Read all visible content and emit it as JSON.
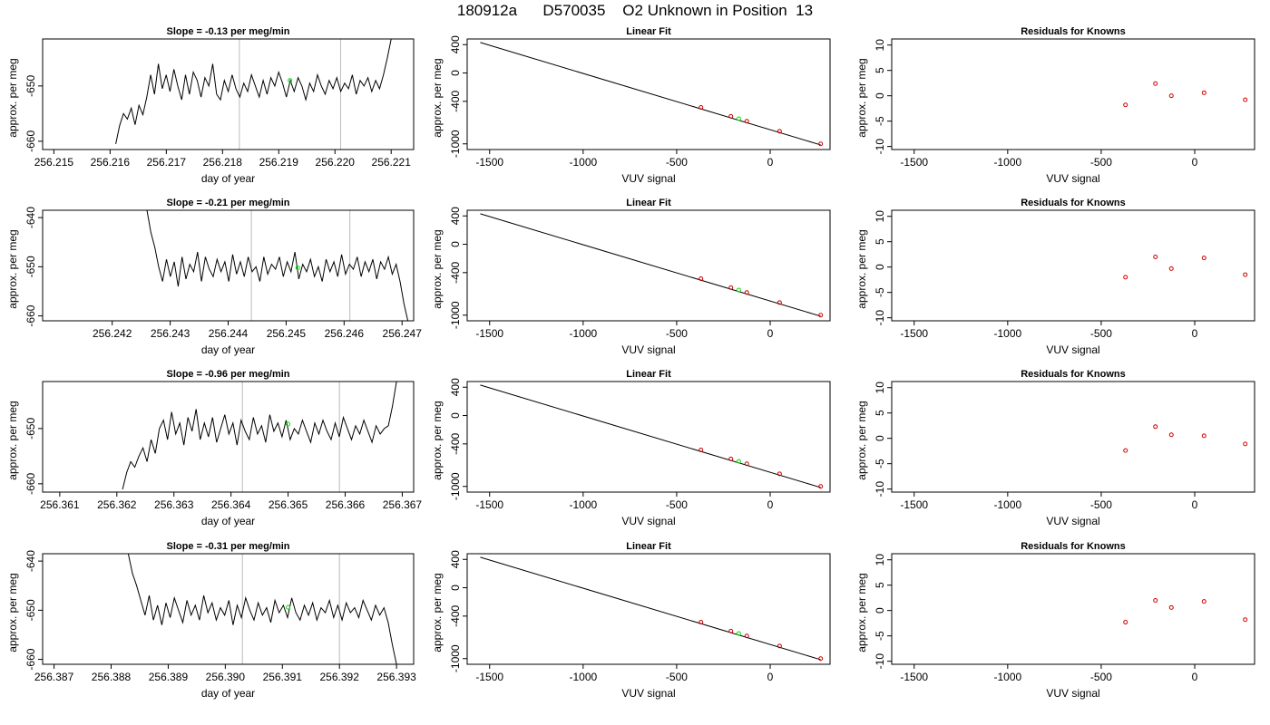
{
  "figure": {
    "title": "180912a      D570035    O2 Unknown in Position  13"
  },
  "colors": {
    "trace": "#000000",
    "marker_unknown": "#00dd00",
    "marker_known": "#cc0000",
    "guide_line": "#bbbbbb"
  },
  "chart_data": [
    {
      "type": "line",
      "panel": "trace-row-1",
      "title": "Slope =  -0.13  per meg/min",
      "xlabel": "day of year",
      "ylabel": "approx. per meg",
      "xlim": [
        256.2148,
        256.2214
      ],
      "ylim": [
        -661.5,
        -641.5
      ],
      "xticks": [
        "256.215",
        "256.216",
        "256.217",
        "256.218",
        "256.219",
        "256.220",
        "256.221"
      ],
      "yticks": [
        "-650",
        "-660"
      ],
      "guide_lines_x": [
        256.2183,
        256.2201
      ],
      "x_start": 256.2161,
      "x_end": 256.221,
      "head": [
        -660.5,
        -657.2,
        -655.0
      ],
      "body": [
        -656.0,
        -654.0,
        -657.0,
        -653.5,
        -655.2,
        -652.0,
        -648.0,
        -651.5,
        -646.0,
        -650.5,
        -648.0,
        -651.0,
        -647.0,
        -650.0,
        -652.5,
        -648.0,
        -651.5,
        -647.5,
        -649.0,
        -652.0,
        -648.5,
        -650.0,
        -646.0,
        -651.5,
        -652.5,
        -649.0,
        -651.0,
        -648.0,
        -650.5,
        -652.0,
        -649.5,
        -651.0,
        -648.0,
        -650.0,
        -652.0,
        -649.0,
        -651.5,
        -648.5,
        -650.0,
        -647.5,
        -649.5,
        -652.0,
        -649.0,
        -651.0,
        -648.5,
        -650.0,
        -652.5,
        -649.5,
        -651.0,
        -648.0,
        -650.0,
        -651.5,
        -649.0,
        -650.5,
        -648.5,
        -651.0,
        -649.5,
        -650.5,
        -648.0,
        -651.5,
        -649.0,
        -650.0,
        -648.5,
        -651.0,
        -649.0,
        -650.5
      ],
      "tail": [
        -648.0,
        -645.0,
        -641.5
      ],
      "marker": {
        "x": 256.2192,
        "y": -649.0
      }
    },
    {
      "type": "line",
      "panel": "trace-row-2",
      "title": "Slope =  -0.21  per meg/min",
      "xlabel": "day of year",
      "ylabel": "approx. per meg",
      "xlim": [
        256.2408,
        256.2472
      ],
      "ylim": [
        -661.0,
        -638.5
      ],
      "xticks": [
        "256.242",
        "256.243",
        "256.244",
        "256.245",
        "256.246",
        "256.247"
      ],
      "yticks": [
        "-640",
        "-650",
        "-660"
      ],
      "guide_lines_x": [
        256.2444,
        256.2461
      ],
      "x_start": 256.2426,
      "x_end": 256.2471,
      "head": [
        -638.5,
        -643.0,
        -646.0
      ],
      "body": [
        -650.0,
        -653.0,
        -648.5,
        -652.0,
        -649.0,
        -654.0,
        -648.0,
        -652.5,
        -649.5,
        -651.0,
        -647.0,
        -653.0,
        -648.0,
        -650.5,
        -652.0,
        -648.5,
        -651.0,
        -649.0,
        -653.0,
        -647.5,
        -651.5,
        -649.0,
        -652.0,
        -648.0,
        -651.0,
        -650.0,
        -653.0,
        -648.0,
        -651.5,
        -649.5,
        -650.5,
        -648.0,
        -652.0,
        -649.0,
        -651.0,
        -647.0,
        -652.5,
        -649.5,
        -651.0,
        -648.5,
        -652.0,
        -650.0,
        -653.0,
        -648.5,
        -651.0,
        -649.0,
        -652.0,
        -647.5,
        -651.5,
        -649.5,
        -650.5,
        -648.0,
        -652.0,
        -649.0,
        -651.0,
        -648.5,
        -652.5,
        -649.0,
        -650.5,
        -648.0,
        -651.5,
        -649.5
      ],
      "tail": [
        -653.0,
        -657.5,
        -661.0
      ],
      "marker": {
        "x": 256.2452,
        "y": -650.2
      }
    },
    {
      "type": "line",
      "panel": "trace-row-3",
      "title": "Slope =  -0.96  per meg/min",
      "xlabel": "day of year",
      "ylabel": "approx. per meg",
      "xlim": [
        256.3607,
        256.3672
      ],
      "ylim": [
        -661.5,
        -641.5
      ],
      "xticks": [
        "256.361",
        "256.362",
        "256.363",
        "256.364",
        "256.365",
        "256.366",
        "256.367"
      ],
      "yticks": [
        "-650",
        "-660"
      ],
      "guide_lines_x": [
        256.3642,
        256.3659
      ],
      "x_start": 256.3621,
      "x_end": 256.3669,
      "head": [
        -661.0,
        -658.0,
        -656.0
      ],
      "body": [
        -657.0,
        -655.0,
        -653.5,
        -656.0,
        -652.0,
        -654.5,
        -650.0,
        -648.5,
        -652.0,
        -647.0,
        -651.0,
        -649.0,
        -653.0,
        -648.0,
        -650.5,
        -646.5,
        -652.0,
        -649.0,
        -651.5,
        -648.0,
        -652.5,
        -650.0,
        -647.5,
        -651.0,
        -649.0,
        -653.0,
        -648.5,
        -650.5,
        -652.0,
        -648.0,
        -651.0,
        -649.5,
        -652.5,
        -647.5,
        -650.5,
        -649.0,
        -651.5,
        -648.5,
        -652.0,
        -650.0,
        -651.0,
        -648.5,
        -650.5,
        -652.5,
        -649.0,
        -651.0,
        -648.5,
        -650.5,
        -652.0,
        -649.0,
        -651.5,
        -648.0,
        -650.0,
        -652.0,
        -649.5,
        -651.0,
        -648.5,
        -650.5,
        -652.5,
        -649.5,
        -651.0,
        -650.0
      ],
      "tail": [
        -649.5,
        -646.0,
        -641.5
      ],
      "marker": {
        "x": 256.365,
        "y": -649.2
      }
    },
    {
      "type": "line",
      "panel": "trace-row-4",
      "title": "Slope =  -0.31  per meg/min",
      "xlabel": "day of year",
      "ylabel": "approx. per meg",
      "xlim": [
        256.3868,
        256.3933
      ],
      "ylim": [
        -661.0,
        -638.5
      ],
      "xticks": [
        "256.387",
        "256.388",
        "256.389",
        "256.390",
        "256.391",
        "256.392",
        "256.393"
      ],
      "yticks": [
        "-640",
        "-650",
        "-660"
      ],
      "guide_lines_x": [
        256.3903,
        256.392
      ],
      "x_start": 256.3883,
      "x_end": 256.393,
      "head": [
        -638.5,
        -642.5,
        -645.0
      ],
      "body": [
        -648.0,
        -651.0,
        -647.0,
        -652.0,
        -649.0,
        -653.0,
        -648.5,
        -651.5,
        -647.5,
        -650.0,
        -652.5,
        -648.0,
        -651.0,
        -649.0,
        -652.0,
        -647.0,
        -650.5,
        -648.5,
        -652.0,
        -649.5,
        -651.0,
        -648.0,
        -653.0,
        -649.0,
        -651.5,
        -647.5,
        -650.0,
        -652.0,
        -648.5,
        -651.0,
        -649.5,
        -652.5,
        -648.0,
        -650.5,
        -649.0,
        -651.5,
        -647.5,
        -650.5,
        -652.0,
        -649.0,
        -651.0,
        -648.5,
        -652.0,
        -649.5,
        -650.5,
        -648.0,
        -651.5,
        -649.0,
        -652.0,
        -648.5,
        -650.5,
        -649.5,
        -651.5,
        -648.0,
        -650.0,
        -652.0,
        -649.0,
        -651.0,
        -649.5
      ],
      "tail": [
        -652.5,
        -657.0,
        -661.0
      ],
      "marker": {
        "x": 256.3911,
        "y": -649.4
      }
    },
    {
      "type": "scatter",
      "panel": "fit-row-1",
      "title": "Linear Fit",
      "xlabel": "VUV signal",
      "ylabel": "approx. per meg",
      "xlim": [
        -1620,
        320
      ],
      "ylim": [
        -1080,
        480
      ],
      "xticks": [
        -1500,
        -1000,
        -500,
        0
      ],
      "yticks": [
        400,
        0,
        -400,
        -1000
      ],
      "fit_line": {
        "x": [
          -1550,
          270
        ],
        "y": [
          430,
          -1015
        ]
      },
      "known_points": [
        {
          "x": -370,
          "y": -486
        },
        {
          "x": -210,
          "y": -612
        },
        {
          "x": -125,
          "y": -680
        },
        {
          "x": 50,
          "y": -822
        },
        {
          "x": 270,
          "y": -1000
        }
      ],
      "unknown_point": {
        "x": -168,
        "y": -646
      }
    },
    {
      "type": "scatter",
      "panel": "fit-row-2",
      "title": "Linear Fit",
      "xlabel": "VUV signal",
      "ylabel": "approx. per meg",
      "xlim": [
        -1620,
        320
      ],
      "ylim": [
        -1080,
        480
      ],
      "xticks": [
        -1500,
        -1000,
        -500,
        0
      ],
      "yticks": [
        400,
        0,
        -400,
        -1000
      ],
      "fit_line": {
        "x": [
          -1550,
          270
        ],
        "y": [
          430,
          -1015
        ]
      },
      "known_points": [
        {
          "x": -370,
          "y": -486
        },
        {
          "x": -210,
          "y": -612
        },
        {
          "x": -125,
          "y": -680
        },
        {
          "x": 50,
          "y": -822
        },
        {
          "x": 270,
          "y": -1000
        }
      ],
      "unknown_point": {
        "x": -168,
        "y": -646
      }
    },
    {
      "type": "scatter",
      "panel": "fit-row-3",
      "title": "Linear Fit",
      "xlabel": "VUV signal",
      "ylabel": "approx. per meg",
      "xlim": [
        -1620,
        320
      ],
      "ylim": [
        -1080,
        480
      ],
      "xticks": [
        -1500,
        -1000,
        -500,
        0
      ],
      "yticks": [
        400,
        0,
        -400,
        -1000
      ],
      "fit_line": {
        "x": [
          -1550,
          270
        ],
        "y": [
          430,
          -1015
        ]
      },
      "known_points": [
        {
          "x": -370,
          "y": -486
        },
        {
          "x": -210,
          "y": -612
        },
        {
          "x": -125,
          "y": -680
        },
        {
          "x": 50,
          "y": -822
        },
        {
          "x": 270,
          "y": -1000
        }
      ],
      "unknown_point": {
        "x": -168,
        "y": -646
      }
    },
    {
      "type": "scatter",
      "panel": "fit-row-4",
      "title": "Linear Fit",
      "xlabel": "VUV signal",
      "ylabel": "approx. per meg",
      "xlim": [
        -1620,
        320
      ],
      "ylim": [
        -1080,
        480
      ],
      "xticks": [
        -1500,
        -1000,
        -500,
        0
      ],
      "yticks": [
        400,
        0,
        -400,
        -1000
      ],
      "fit_line": {
        "x": [
          -1550,
          270
        ],
        "y": [
          430,
          -1015
        ]
      },
      "known_points": [
        {
          "x": -370,
          "y": -486
        },
        {
          "x": -210,
          "y": -612
        },
        {
          "x": -125,
          "y": -680
        },
        {
          "x": 50,
          "y": -822
        },
        {
          "x": 270,
          "y": -1000
        }
      ],
      "unknown_point": {
        "x": -168,
        "y": -646
      }
    },
    {
      "type": "scatter",
      "panel": "residual-row-1",
      "title": "Residuals for Knowns",
      "xlabel": "VUV signal",
      "ylabel": "approx. per meg",
      "xlim": [
        -1620,
        320
      ],
      "ylim": [
        -10.6,
        11.2
      ],
      "xticks": [
        -1500,
        -1000,
        -500,
        0
      ],
      "yticks": [
        10,
        5,
        0,
        -5,
        -10
      ],
      "known_points": [
        {
          "x": -370,
          "y": -1.8
        },
        {
          "x": -210,
          "y": 2.4
        },
        {
          "x": -125,
          "y": 0.0
        },
        {
          "x": 50,
          "y": 0.6
        },
        {
          "x": 270,
          "y": -0.8
        }
      ]
    },
    {
      "type": "scatter",
      "panel": "residual-row-2",
      "title": "Residuals for Knowns",
      "xlabel": "VUV signal",
      "ylabel": "approx. per meg",
      "xlim": [
        -1620,
        320
      ],
      "ylim": [
        -10.6,
        11.2
      ],
      "xticks": [
        -1500,
        -1000,
        -500,
        0
      ],
      "yticks": [
        10,
        5,
        0,
        -5,
        -10
      ],
      "known_points": [
        {
          "x": -370,
          "y": -2.0
        },
        {
          "x": -210,
          "y": 2.0
        },
        {
          "x": -125,
          "y": -0.3
        },
        {
          "x": 50,
          "y": 1.8
        },
        {
          "x": 270,
          "y": -1.5
        }
      ]
    },
    {
      "type": "scatter",
      "panel": "residual-row-3",
      "title": "Residuals for Knowns",
      "xlabel": "VUV signal",
      "ylabel": "approx. per meg",
      "xlim": [
        -1620,
        320
      ],
      "ylim": [
        -10.6,
        11.2
      ],
      "xticks": [
        -1500,
        -1000,
        -500,
        0
      ],
      "yticks": [
        10,
        5,
        0,
        -5,
        -10
      ],
      "known_points": [
        {
          "x": -370,
          "y": -2.4
        },
        {
          "x": -210,
          "y": 2.3
        },
        {
          "x": -125,
          "y": 0.7
        },
        {
          "x": 50,
          "y": 0.5
        },
        {
          "x": 270,
          "y": -1.1
        }
      ]
    },
    {
      "type": "scatter",
      "panel": "residual-row-4",
      "title": "Residuals for Knowns",
      "xlabel": "VUV signal",
      "ylabel": "approx. per meg",
      "xlim": [
        -1620,
        320
      ],
      "ylim": [
        -10.6,
        11.2
      ],
      "xticks": [
        -1500,
        -1000,
        -500,
        0
      ],
      "yticks": [
        10,
        5,
        0,
        -5,
        -10
      ],
      "known_points": [
        {
          "x": -370,
          "y": -2.3
        },
        {
          "x": -210,
          "y": 2.0
        },
        {
          "x": -125,
          "y": 0.6
        },
        {
          "x": 50,
          "y": 1.8
        },
        {
          "x": 270,
          "y": -1.8
        }
      ]
    }
  ]
}
